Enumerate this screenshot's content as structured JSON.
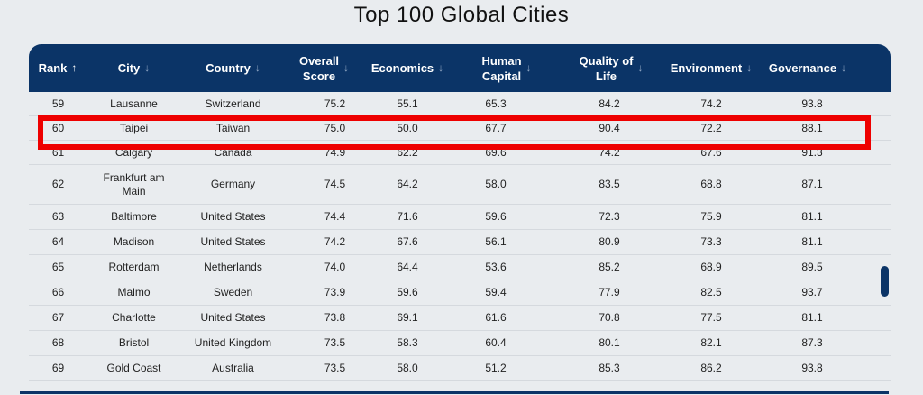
{
  "title": "Top 100 Global Cities",
  "columns": [
    {
      "key": "rank",
      "lines": [
        "Rank"
      ],
      "arrow": "↑",
      "active": true
    },
    {
      "key": "city",
      "lines": [
        "City"
      ],
      "arrow": "↓",
      "active": false
    },
    {
      "key": "country",
      "lines": [
        "Country"
      ],
      "arrow": "↓",
      "active": false
    },
    {
      "key": "overall",
      "lines": [
        "Overall",
        "Score"
      ],
      "arrow": "↓",
      "active": false
    },
    {
      "key": "econ",
      "lines": [
        "Economics"
      ],
      "arrow": "↓",
      "active": false
    },
    {
      "key": "human",
      "lines": [
        "Human",
        "Capital"
      ],
      "arrow": "↓",
      "active": false
    },
    {
      "key": "qol",
      "lines": [
        "Quality of",
        "Life"
      ],
      "arrow": "↓",
      "active": false
    },
    {
      "key": "env",
      "lines": [
        "Environment"
      ],
      "arrow": "↓",
      "active": false
    },
    {
      "key": "gov",
      "lines": [
        "Governance"
      ],
      "arrow": "↓",
      "active": false
    }
  ],
  "rows": [
    {
      "rank": "59",
      "city": "Lausanne",
      "country": "Switzerland",
      "overall": "75.2",
      "econ": "55.1",
      "human": "65.3",
      "qol": "84.2",
      "env": "74.2",
      "gov": "93.8"
    },
    {
      "rank": "60",
      "city": "Taipei",
      "country": "Taiwan",
      "overall": "75.0",
      "econ": "50.0",
      "human": "67.7",
      "qol": "90.4",
      "env": "72.2",
      "gov": "88.1"
    },
    {
      "rank": "61",
      "city": "Calgary",
      "country": "Canada",
      "overall": "74.9",
      "econ": "62.2",
      "human": "69.6",
      "qol": "74.2",
      "env": "67.6",
      "gov": "91.3"
    },
    {
      "rank": "62",
      "city": "Frankfurt am Main",
      "country": "Germany",
      "overall": "74.5",
      "econ": "64.2",
      "human": "58.0",
      "qol": "83.5",
      "env": "68.8",
      "gov": "87.1"
    },
    {
      "rank": "63",
      "city": "Baltimore",
      "country": "United States",
      "overall": "74.4",
      "econ": "71.6",
      "human": "59.6",
      "qol": "72.3",
      "env": "75.9",
      "gov": "81.1"
    },
    {
      "rank": "64",
      "city": "Madison",
      "country": "United States",
      "overall": "74.2",
      "econ": "67.6",
      "human": "56.1",
      "qol": "80.9",
      "env": "73.3",
      "gov": "81.1"
    },
    {
      "rank": "65",
      "city": "Rotterdam",
      "country": "Netherlands",
      "overall": "74.0",
      "econ": "64.4",
      "human": "53.6",
      "qol": "85.2",
      "env": "68.9",
      "gov": "89.5"
    },
    {
      "rank": "66",
      "city": "Malmo",
      "country": "Sweden",
      "overall": "73.9",
      "econ": "59.6",
      "human": "59.4",
      "qol": "77.9",
      "env": "82.5",
      "gov": "93.7"
    },
    {
      "rank": "67",
      "city": "Charlotte",
      "country": "United States",
      "overall": "73.8",
      "econ": "69.1",
      "human": "61.6",
      "qol": "70.8",
      "env": "77.5",
      "gov": "81.1"
    },
    {
      "rank": "68",
      "city": "Bristol",
      "country": "United Kingdom",
      "overall": "73.5",
      "econ": "58.3",
      "human": "60.4",
      "qol": "80.1",
      "env": "82.1",
      "gov": "87.3"
    },
    {
      "rank": "69",
      "city": "Gold Coast",
      "country": "Australia",
      "overall": "73.5",
      "econ": "58.0",
      "human": "51.2",
      "qol": "85.3",
      "env": "86.2",
      "gov": "93.8"
    }
  ],
  "highlight_color": "#ee0000",
  "header_color": "#0b3467"
}
